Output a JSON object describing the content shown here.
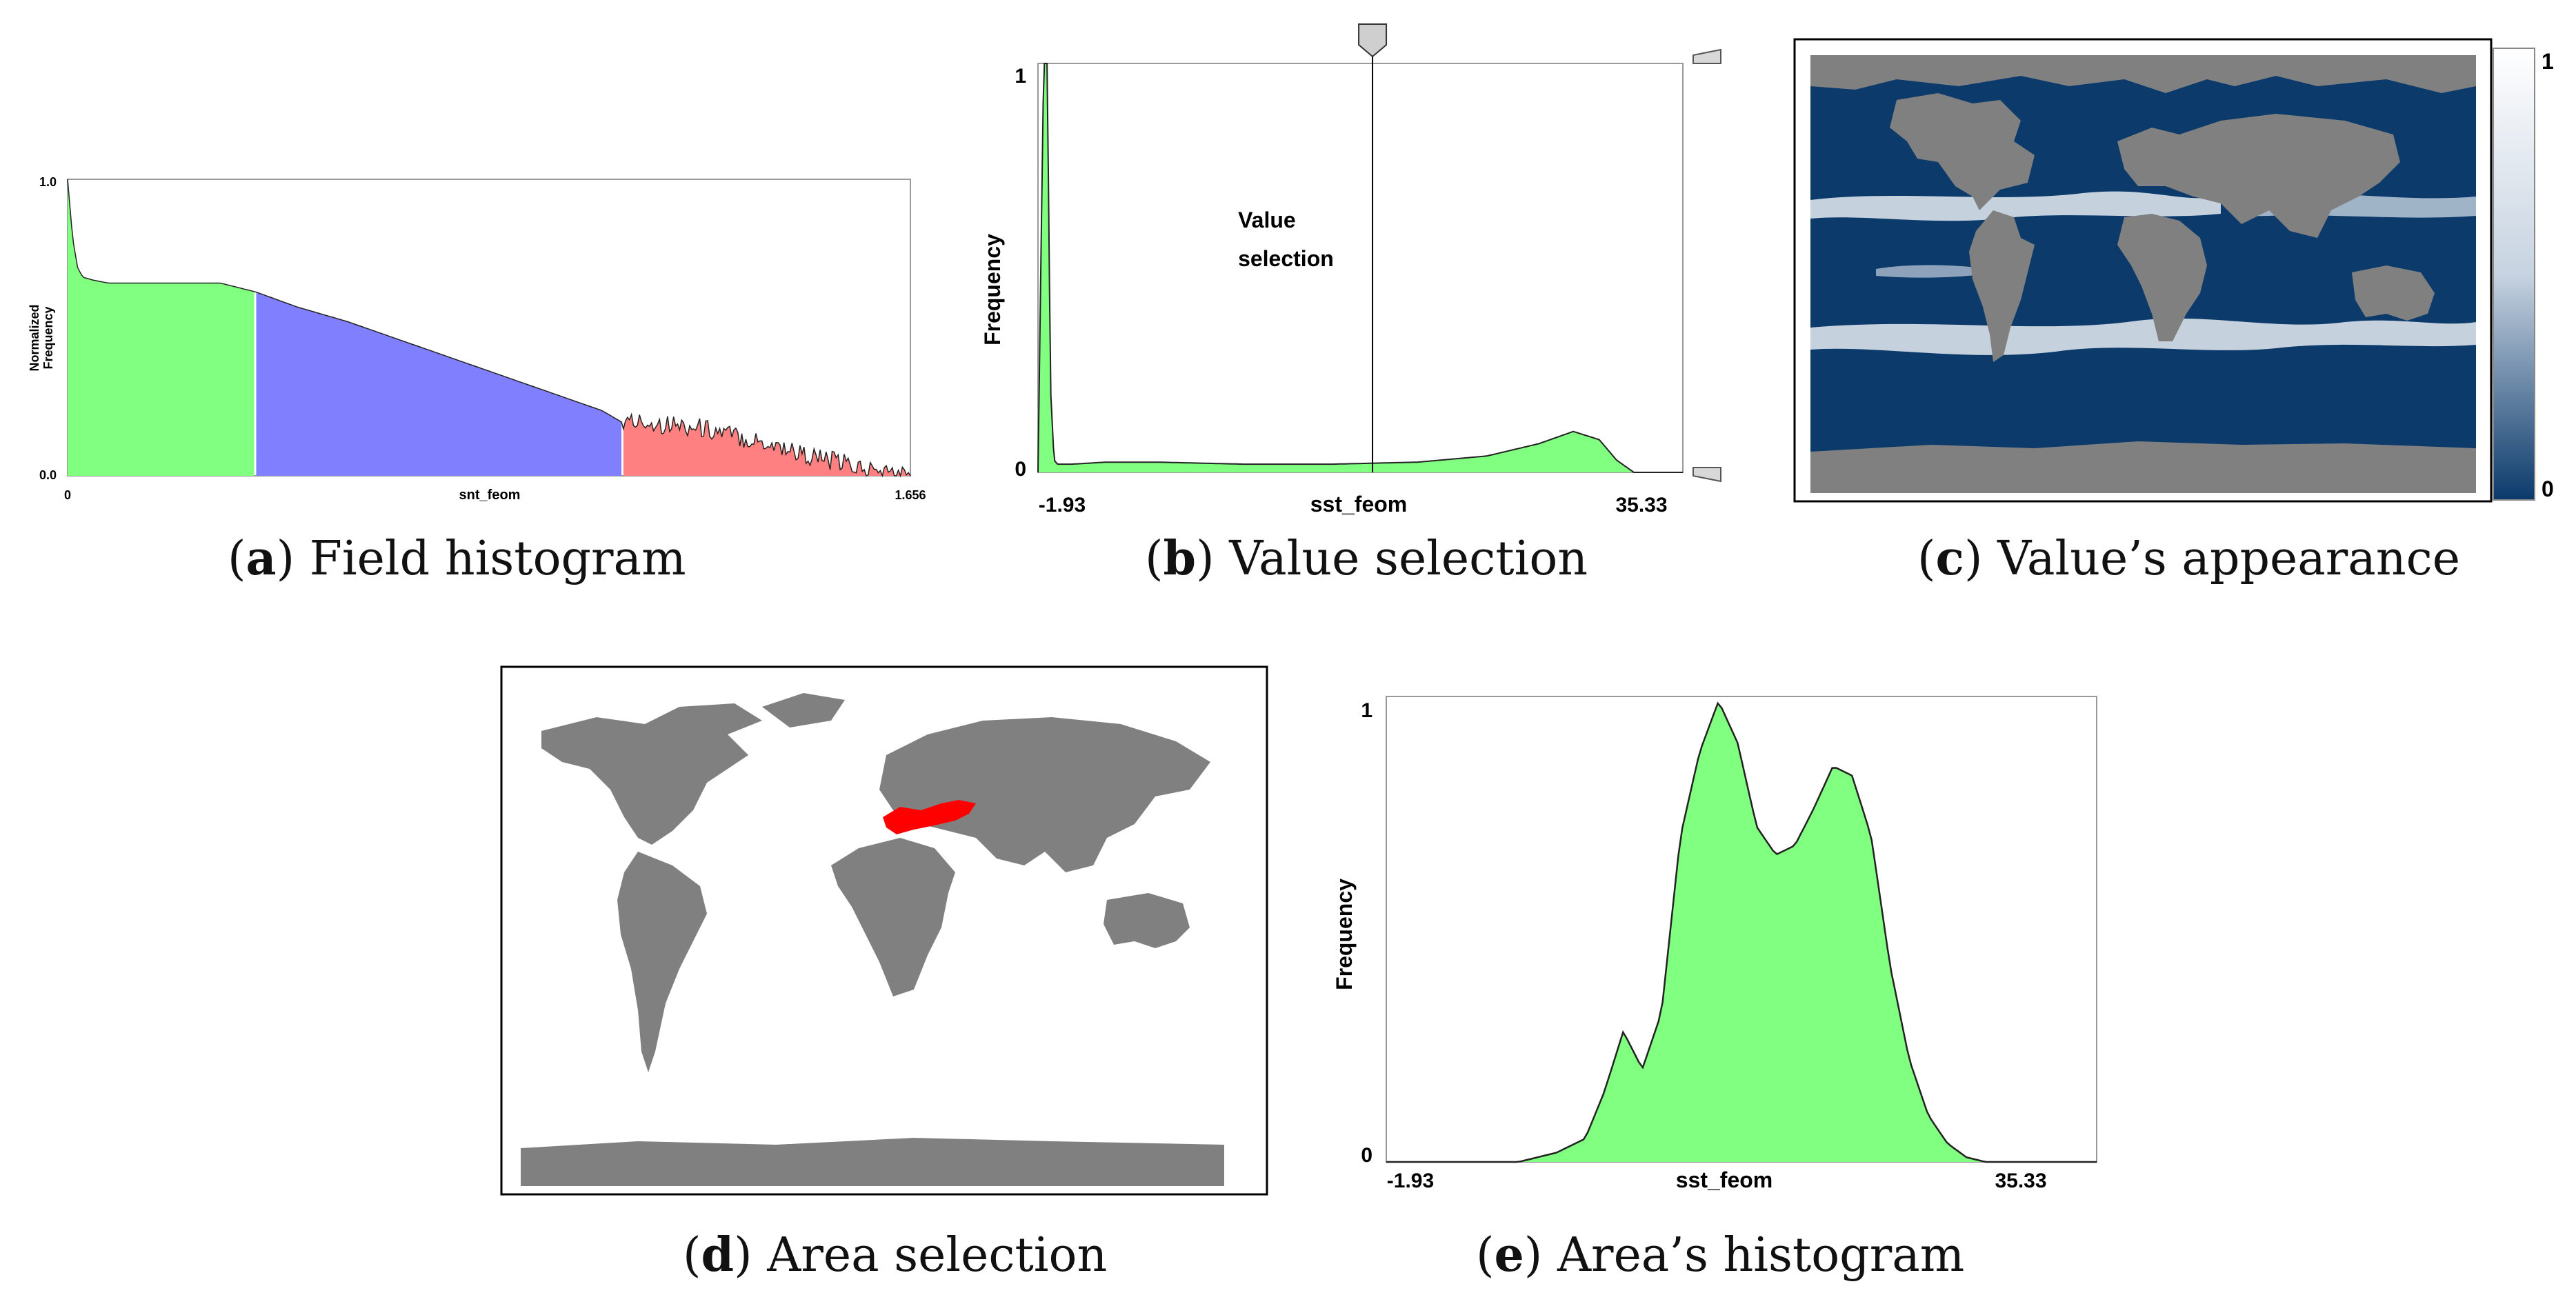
{
  "chart_data": [
    {
      "id": "a",
      "type": "area",
      "xlabel": "snt_feom",
      "ylabel": "Normalized\nFrequency",
      "xlim": [
        0,
        1.656
      ],
      "ylim": [
        0,
        1.0
      ],
      "x_ticks": [
        "0",
        "1.656"
      ],
      "y_ticks": [
        "0.0",
        "1.0"
      ],
      "segment_breaks": [
        0.37,
        1.09
      ],
      "segment_colors": [
        "#80ff80",
        "#8080ff",
        "#ff8080"
      ],
      "x": [
        0,
        0.01,
        0.02,
        0.03,
        0.05,
        0.08,
        0.12,
        0.2,
        0.3,
        0.37,
        0.45,
        0.55,
        0.65,
        0.75,
        0.85,
        0.95,
        1.05,
        1.09,
        1.15,
        1.2,
        1.25,
        1.3,
        1.35,
        1.4,
        1.45,
        1.5,
        1.55,
        1.6,
        1.656
      ],
      "y": [
        1.0,
        0.8,
        0.7,
        0.67,
        0.66,
        0.65,
        0.65,
        0.65,
        0.65,
        0.62,
        0.57,
        0.52,
        0.46,
        0.4,
        0.34,
        0.28,
        0.22,
        0.18,
        0.18,
        0.17,
        0.16,
        0.14,
        0.12,
        0.1,
        0.07,
        0.05,
        0.03,
        0.01,
        0.0
      ]
    },
    {
      "id": "b",
      "type": "area",
      "xlabel": "sst_feom",
      "ylabel": "Frequency",
      "xlim": [
        -1.93,
        35.33
      ],
      "ylim": [
        0,
        1
      ],
      "x_ticks": [
        "-1.93",
        "35.33"
      ],
      "y_ticks": [
        "0",
        "1"
      ],
      "annotation": "Value\nselection",
      "selection_x": 17.4,
      "color": "#80ff80",
      "x": [
        -1.93,
        -1.6,
        -1.4,
        -1.2,
        -1.0,
        -0.8,
        0,
        2,
        5,
        10,
        15,
        20,
        24,
        27,
        29,
        30.5,
        31.5,
        32.5,
        33.5,
        34.5,
        35.33
      ],
      "y": [
        0.0,
        1.0,
        1.0,
        0.2,
        0.03,
        0.02,
        0.02,
        0.025,
        0.025,
        0.02,
        0.02,
        0.025,
        0.04,
        0.07,
        0.1,
        0.08,
        0.03,
        0.0,
        0.0,
        0.0,
        0.0
      ]
    },
    {
      "id": "c",
      "type": "heatmap",
      "colorbar_ticks": [
        "1",
        "0"
      ],
      "colorbar_colors": [
        "#ffffff",
        "#0b3a6b"
      ]
    },
    {
      "id": "e",
      "type": "area",
      "xlabel": "sst_feom",
      "ylabel": "Frequency",
      "xlim": [
        -1.93,
        35.33
      ],
      "ylim": [
        0,
        1
      ],
      "x_ticks": [
        "-1.93",
        "35.33"
      ],
      "y_ticks": [
        "0",
        "1"
      ],
      "color": "#80ff80",
      "x": [
        -1.93,
        5,
        7,
        8.5,
        9.5,
        10.5,
        11.5,
        12.5,
        13.5,
        14.5,
        15.5,
        16.5,
        17.5,
        18.5,
        19.5,
        20.5,
        21.5,
        22.5,
        23.5,
        24.5,
        25.5,
        26.5,
        27.5,
        28.5,
        29.5,
        30.5,
        35.33
      ],
      "y": [
        0,
        0,
        0.02,
        0.05,
        0.15,
        0.28,
        0.2,
        0.32,
        0.7,
        0.88,
        0.99,
        0.9,
        0.72,
        0.66,
        0.68,
        0.76,
        0.85,
        0.83,
        0.7,
        0.42,
        0.22,
        0.1,
        0.04,
        0.01,
        0,
        0,
        0
      ]
    }
  ],
  "captions": {
    "a_letter": "a",
    "a_text": "Field histogram",
    "b_letter": "b",
    "b_text": "Value selection",
    "c_letter": "c",
    "c_text": "Value’s appearance",
    "d_letter": "d",
    "d_text": "Area selection",
    "e_letter": "e",
    "e_text": "Area’s histogram"
  },
  "colors": {
    "ocean": "#0b3a6b",
    "land": "#808080",
    "area_highlight": "#ff0000"
  }
}
